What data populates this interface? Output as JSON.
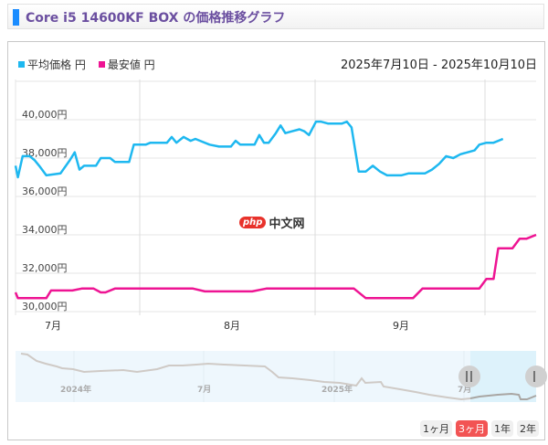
{
  "header": {
    "title": "Core i5 14600KF BOX の価格推移グラフ"
  },
  "legend": [
    {
      "label": "平均価格 円",
      "color": "#1eb8f0"
    },
    {
      "label": "最安値 円",
      "color": "#ee1493"
    }
  ],
  "date_range": "2025年7月10日 - 2025年10月10日",
  "watermark": {
    "badge": "php",
    "text": "中文网"
  },
  "periods": [
    {
      "label": "1ヶ月",
      "active": false
    },
    {
      "label": "3ヶ月",
      "active": true
    },
    {
      "label": "1年",
      "active": false
    },
    {
      "label": "2年",
      "active": false
    }
  ],
  "navigator": {
    "labels": [
      "2024年",
      "7月",
      "2025年",
      "7月"
    ]
  },
  "chart_data": {
    "type": "line",
    "title": "Core i5 14600KF BOX の価格推移グラフ",
    "xlabel": "",
    "ylabel": "円",
    "ylim": [
      29500,
      44000
    ],
    "y_ticks": [
      "30,000円",
      "32,000円",
      "34,000円",
      "36,000円",
      "38,000円",
      "40,000円"
    ],
    "x_ticks": [
      "7月",
      "8月",
      "9月"
    ],
    "legend_position": "top-left",
    "grid": true,
    "x_range": [
      "2025-07-10",
      "2025-10-10"
    ],
    "series": [
      {
        "name": "平均価格 円",
        "color": "#1eb8f0",
        "points": [
          [
            0,
            37600
          ],
          [
            1,
            37000
          ],
          [
            3,
            38100
          ],
          [
            6,
            38100
          ],
          [
            8,
            37900
          ],
          [
            10,
            37600
          ],
          [
            13,
            37100
          ],
          [
            19,
            37200
          ],
          [
            23,
            37900
          ],
          [
            25,
            38300
          ],
          [
            27,
            37400
          ],
          [
            29,
            37600
          ],
          [
            34,
            37600
          ],
          [
            36,
            38000
          ],
          [
            40,
            38000
          ],
          [
            42,
            37800
          ],
          [
            48,
            37800
          ],
          [
            50,
            38700
          ],
          [
            55,
            38700
          ],
          [
            57,
            38800
          ],
          [
            64,
            38800
          ],
          [
            66,
            39100
          ],
          [
            68,
            38800
          ],
          [
            71,
            39100
          ],
          [
            74,
            38900
          ],
          [
            76,
            39000
          ],
          [
            78,
            38900
          ],
          [
            82,
            38700
          ],
          [
            86,
            38600
          ],
          [
            91,
            38600
          ],
          [
            93,
            38900
          ],
          [
            95,
            38700
          ],
          [
            101,
            38700
          ],
          [
            103,
            39200
          ],
          [
            105,
            38800
          ],
          [
            107,
            38800
          ],
          [
            110,
            39300
          ],
          [
            112,
            39700
          ],
          [
            114,
            39300
          ],
          [
            117,
            39400
          ],
          [
            120,
            39500
          ],
          [
            122,
            39400
          ],
          [
            124,
            39200
          ],
          [
            127,
            39900
          ],
          [
            129,
            39900
          ],
          [
            132,
            39800
          ],
          [
            138,
            39800
          ],
          [
            140,
            39900
          ],
          [
            142,
            39600
          ],
          [
            145,
            37300
          ],
          [
            148,
            37300
          ],
          [
            151,
            37600
          ],
          [
            154,
            37300
          ],
          [
            157,
            37100
          ],
          [
            163,
            37100
          ],
          [
            166,
            37200
          ],
          [
            173,
            37200
          ],
          [
            176,
            37400
          ],
          [
            179,
            37700
          ],
          [
            182,
            38100
          ],
          [
            185,
            38000
          ],
          [
            188,
            38200
          ],
          [
            191,
            38300
          ],
          [
            194,
            38400
          ],
          [
            196,
            38700
          ],
          [
            199,
            38800
          ],
          [
            202,
            38800
          ],
          [
            206,
            39000
          ]
        ]
      },
      {
        "name": "最安値 円",
        "color": "#ee1493",
        "points": [
          [
            0,
            31000
          ],
          [
            1,
            30700
          ],
          [
            13,
            30700
          ],
          [
            15,
            31100
          ],
          [
            24,
            31100
          ],
          [
            28,
            31200
          ],
          [
            33,
            31200
          ],
          [
            36,
            31000
          ],
          [
            38,
            31000
          ],
          [
            42,
            31200
          ],
          [
            75,
            31200
          ],
          [
            80,
            31050
          ],
          [
            100,
            31050
          ],
          [
            106,
            31200
          ],
          [
            143,
            31200
          ],
          [
            148,
            30700
          ],
          [
            168,
            30700
          ],
          [
            172,
            31200
          ],
          [
            196,
            31200
          ],
          [
            199,
            31700
          ],
          [
            202,
            31700
          ],
          [
            204,
            33300
          ],
          [
            210,
            33300
          ],
          [
            213,
            33800
          ],
          [
            216,
            33800
          ],
          [
            220,
            34000
          ]
        ]
      }
    ]
  }
}
